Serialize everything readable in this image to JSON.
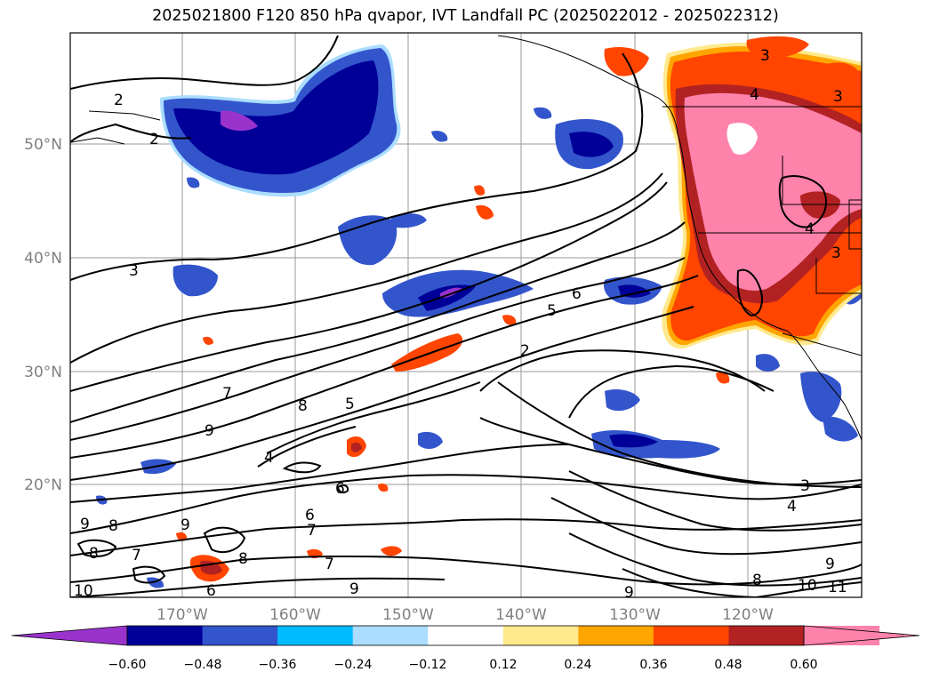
{
  "title": "2025021800 F120 850 hPa qvapor, IVT Landfall PC (2025022012 - 2025022312)",
  "map": {
    "lat_labels": [
      "50°N",
      "40°N",
      "30°N",
      "20°N"
    ],
    "lon_labels": [
      "170°W",
      "160°W",
      "150°W",
      "140°W",
      "130°W",
      "120°W"
    ],
    "contour_labels": [
      "2",
      "2",
      "3",
      "3",
      "3",
      "4",
      "4",
      "3",
      "6",
      "5",
      "2",
      "7",
      "8",
      "9",
      "5",
      "4",
      "6",
      "9",
      "8",
      "7",
      "10",
      "8",
      "9",
      "8",
      "9",
      "3",
      "4",
      "8",
      "9",
      "10",
      "11",
      "6",
      "7",
      "7",
      "6",
      "9"
    ]
  },
  "colorbar": {
    "ticks": [
      "−0.60",
      "−0.48",
      "−0.36",
      "−0.24",
      "−0.12",
      "0.12",
      "0.24",
      "0.36",
      "0.48",
      "0.60"
    ],
    "colors": [
      "#9933cc",
      "#000099",
      "#3355cc",
      "#00bbff",
      "#aaddff",
      "#ffffff",
      "#ffe98c",
      "#ffa500",
      "#ff4500",
      "#b22222",
      "#ff82ab",
      "#ff82ab"
    ]
  }
}
